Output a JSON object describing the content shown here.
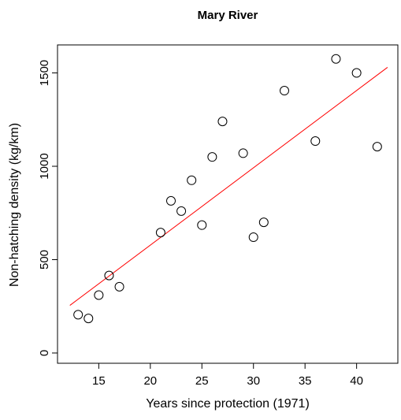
{
  "chart_data": {
    "type": "scatter",
    "title": "Mary River",
    "xlabel": "Years since protection (1971)",
    "ylabel": "Non-hatching density (kg/km)",
    "xlim": [
      11,
      44
    ],
    "ylim": [
      -55,
      1650
    ],
    "xticks": [
      15,
      20,
      25,
      30,
      35,
      40
    ],
    "yticks": [
      0,
      500,
      1000,
      1500
    ],
    "grid": false,
    "legend": "none",
    "point_color": "#000000",
    "fit_color": "#ff0000",
    "points": [
      {
        "x": 13,
        "y": 205
      },
      {
        "x": 14,
        "y": 185
      },
      {
        "x": 15,
        "y": 310
      },
      {
        "x": 16,
        "y": 415
      },
      {
        "x": 17,
        "y": 355
      },
      {
        "x": 21,
        "y": 645
      },
      {
        "x": 22,
        "y": 815
      },
      {
        "x": 23,
        "y": 760
      },
      {
        "x": 24,
        "y": 925
      },
      {
        "x": 25,
        "y": 685
      },
      {
        "x": 26,
        "y": 1050
      },
      {
        "x": 27,
        "y": 1240
      },
      {
        "x": 29,
        "y": 1070
      },
      {
        "x": 30,
        "y": 620
      },
      {
        "x": 31,
        "y": 700
      },
      {
        "x": 33,
        "y": 1405
      },
      {
        "x": 36,
        "y": 1135
      },
      {
        "x": 38,
        "y": 1575
      },
      {
        "x": 40,
        "y": 1500
      },
      {
        "x": 42,
        "y": 1105
      }
    ],
    "fit_line": {
      "x": [
        12.2,
        43
      ],
      "y": [
        255,
        1530
      ]
    }
  }
}
